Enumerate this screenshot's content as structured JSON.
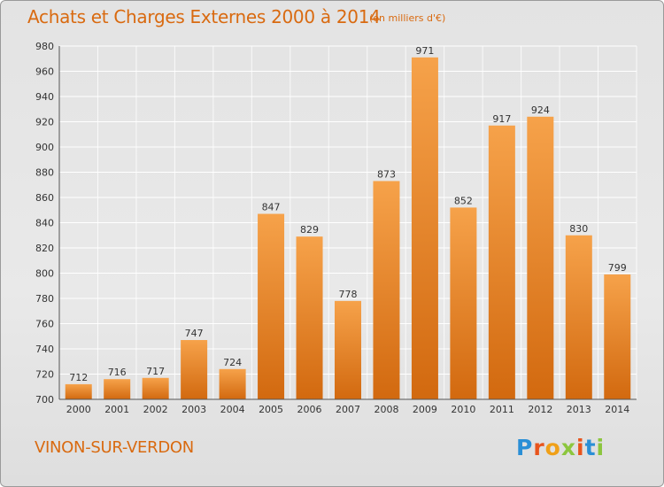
{
  "header": {
    "title": "Achats et Charges Externes 2000 à 2014",
    "subtitle": "(en milliers d'€)"
  },
  "footer": {
    "place": "VINON-SUR-VERDON",
    "logo_text": "Proxiti"
  },
  "colors": {
    "accent": "#d96a10",
    "bar_top": "#f6a24a",
    "bar_bottom": "#d2690f",
    "grid": "#ffffff"
  },
  "chart_data": {
    "type": "bar",
    "title": "Achats et Charges Externes 2000 à 2014",
    "subtitle": "(en milliers d'€)",
    "xlabel": "",
    "ylabel": "",
    "categories": [
      "2000",
      "2001",
      "2002",
      "2003",
      "2004",
      "2005",
      "2006",
      "2007",
      "2008",
      "2009",
      "2010",
      "2011",
      "2012",
      "2013",
      "2014"
    ],
    "values": [
      712,
      716,
      717,
      747,
      724,
      847,
      829,
      778,
      873,
      971,
      852,
      917,
      924,
      830,
      799
    ],
    "ylim": [
      700,
      980
    ],
    "yticks": [
      700,
      720,
      740,
      760,
      780,
      800,
      820,
      840,
      860,
      880,
      900,
      920,
      940,
      960,
      980
    ],
    "grid": true,
    "data_labels": true
  }
}
